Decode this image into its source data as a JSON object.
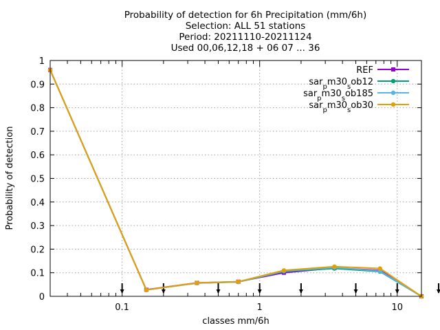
{
  "chart_data": {
    "type": "line",
    "title_lines": [
      "Probability of detection  for 6h Precipitation (mm/6h)",
      "Selection: ALL     51 stations",
      "Period: 20211110-20211124",
      "Used 00,06,12,18 + 06 07 ... 36"
    ],
    "xlabel": "classes mm/6h",
    "ylabel": "Probability of detection",
    "x_scale": "log",
    "xlim": [
      0.03,
      15
    ],
    "ylim": [
      0,
      1
    ],
    "x_ticks": [
      {
        "value": 0.1,
        "label": "0.1"
      },
      {
        "value": 1,
        "label": "1"
      },
      {
        "value": 10,
        "label": "10"
      }
    ],
    "y_ticks": [
      {
        "value": 0,
        "label": "0"
      },
      {
        "value": 0.1,
        "label": "0.1"
      },
      {
        "value": 0.2,
        "label": "0.2"
      },
      {
        "value": 0.3,
        "label": "0.3"
      },
      {
        "value": 0.4,
        "label": "0.4"
      },
      {
        "value": 0.5,
        "label": "0.5"
      },
      {
        "value": 0.6,
        "label": "0.6"
      },
      {
        "value": 0.7,
        "label": "0.7"
      },
      {
        "value": 0.8,
        "label": "0.8"
      },
      {
        "value": 0.9,
        "label": "0.9"
      },
      {
        "value": 1,
        "label": "1"
      }
    ],
    "grid": true,
    "legend_position": "top-right",
    "x": [
      0.03,
      0.15,
      0.35,
      0.7,
      1.5,
      3.5,
      7.5,
      15
    ],
    "series": [
      {
        "name": "REF",
        "color": "#9400d3",
        "values": [
          0.96,
          0.028,
          0.057,
          0.062,
          0.1,
          0.12,
          0.11,
          0.0
        ]
      },
      {
        "name": "sar_pm30_sob12",
        "color": "#009e73",
        "values": [
          0.96,
          0.027,
          0.056,
          0.061,
          0.105,
          0.118,
          0.105,
          0.0
        ]
      },
      {
        "name": "sar_pm30_sob185",
        "color": "#56b4e9",
        "values": [
          0.96,
          0.027,
          0.056,
          0.061,
          0.107,
          0.122,
          0.107,
          0.0
        ]
      },
      {
        "name": "sar_pm30_sob30",
        "color": "#e69f00",
        "values": [
          0.96,
          0.027,
          0.057,
          0.062,
          0.11,
          0.126,
          0.118,
          0.0
        ]
      }
    ],
    "station_markers": {
      "color": "#000000",
      "x": [
        0.1,
        0.2,
        0.5,
        1,
        2,
        5,
        10,
        20
      ]
    }
  }
}
